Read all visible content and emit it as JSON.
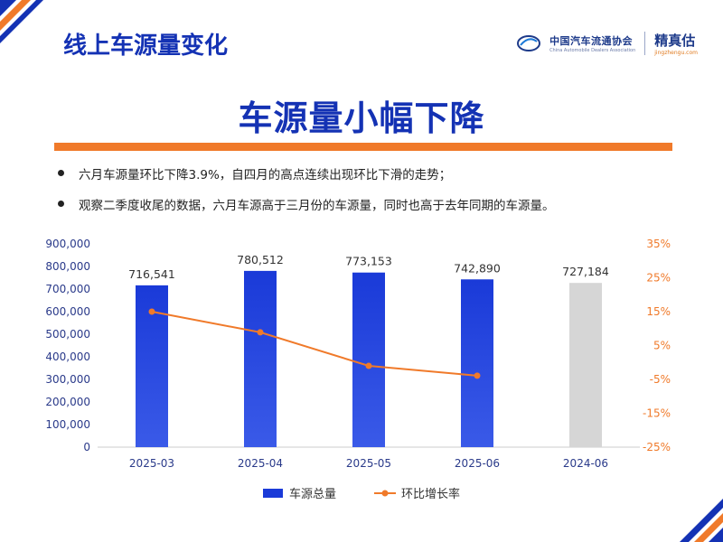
{
  "header": {
    "title": "线上车源量变化"
  },
  "logos": {
    "association_cn": "中国汽车流通协会",
    "association_en": "China Automobile Dealers Association",
    "brand_name": "精真估",
    "brand_url": "jingzhengu.com"
  },
  "main_title": "车源量小幅下降",
  "bullets": [
    "六月车源量环比下降3.9%，自四月的高点连续出现环比下滑的走势；",
    "观察二季度收尾的数据，六月车源高于三月份的车源量，同时也高于去年同期的车源量。"
  ],
  "colors": {
    "title_blue": "#1432b4",
    "bar_blue": "#1a3ad8",
    "bar_gray": "#d6d6d6",
    "line_orange": "#f07a2a",
    "accent_orange": "#f07a2a"
  },
  "chart_data": {
    "type": "bar",
    "categories": [
      "2025-03",
      "2025-04",
      "2025-05",
      "2025-06",
      "2024-06"
    ],
    "series": [
      {
        "name": "车源总量",
        "type": "bar",
        "axis": "left",
        "values": [
          716541,
          780512,
          773153,
          742890,
          727184
        ],
        "labels": [
          "716,541",
          "780,512",
          "773,153",
          "742,890",
          "727,184"
        ]
      },
      {
        "name": "环比增长率",
        "type": "line",
        "axis": "right",
        "values": [
          15,
          8.9,
          -1,
          -3.9,
          null
        ]
      }
    ],
    "y_left": {
      "min": 0,
      "max": 900000,
      "ticks": [
        "0",
        "100,000",
        "200,000",
        "300,000",
        "400,000",
        "500,000",
        "600,000",
        "700,000",
        "800,000",
        "900,000"
      ]
    },
    "y_right": {
      "min": -25,
      "max": 35,
      "ticks": [
        "-25%",
        "-15%",
        "-5%",
        "5%",
        "15%",
        "25%",
        "35%"
      ]
    },
    "legend": {
      "placement": "bottom"
    },
    "grid": false
  }
}
